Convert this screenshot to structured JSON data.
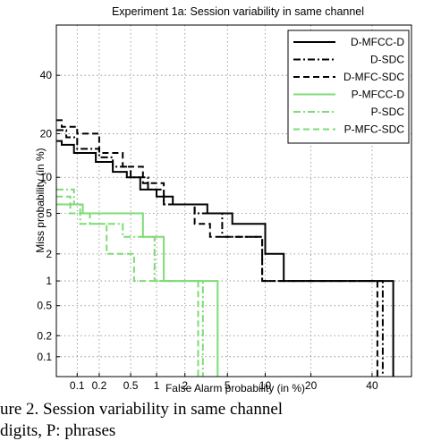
{
  "chart_data": {
    "type": "line",
    "title": "Experiment 1a: Session variability in same channel",
    "xlabel": "False Alarm probability (in %)",
    "ylabel": "Miss probability (in %)",
    "x_scale": "probit",
    "y_scale": "probit",
    "xlim": [
      0.05,
      55
    ],
    "ylim": [
      0.05,
      60
    ],
    "x_ticks": [
      0.1,
      0.2,
      0.5,
      1,
      2,
      5,
      10,
      20,
      40
    ],
    "x_tick_labels": [
      "0.1",
      "0.2",
      "0.5",
      "1",
      "2",
      "5",
      "10",
      "20",
      "40"
    ],
    "y_ticks": [
      0.1,
      0.2,
      0.5,
      1,
      2,
      5,
      10,
      20,
      40
    ],
    "y_tick_labels": [
      "0.1",
      "0.2",
      "0.5",
      "1",
      "2",
      "5",
      "10",
      "20",
      "40"
    ],
    "grid": true,
    "legend_position": "top-right",
    "series": [
      {
        "name": "D-MFCC-D",
        "color": "#000000",
        "dash": "solid",
        "x": [
          0.05,
          0.06,
          0.06,
          0.09,
          0.09,
          0.18,
          0.18,
          0.3,
          0.3,
          0.45,
          0.45,
          0.65,
          0.65,
          1.0,
          1.0,
          1.5,
          1.5,
          3.3,
          3.3,
          5.5,
          5.5,
          10,
          10,
          13.5,
          13.5,
          48,
          48
        ],
        "y": [
          18,
          18,
          17,
          17,
          15,
          15,
          13,
          13,
          11,
          11,
          10,
          10,
          8,
          8,
          7,
          7,
          6,
          6,
          5,
          5,
          4,
          4,
          2,
          2,
          1,
          1,
          0.05
        ]
      },
      {
        "name": "D-SDC",
        "color": "#000000",
        "dash": "dashdot",
        "x": [
          0.05,
          0.07,
          0.07,
          0.1,
          0.1,
          0.2,
          0.2,
          0.3,
          0.3,
          0.5,
          0.5,
          0.8,
          0.8,
          1.2,
          1.2,
          2.5,
          2.5,
          4.5,
          4.5,
          9.5,
          9.5,
          44,
          44
        ],
        "y": [
          21,
          21,
          19,
          19,
          16,
          16,
          14,
          14,
          12,
          12,
          10,
          10,
          8,
          8,
          6,
          6,
          5,
          5,
          3,
          3,
          1,
          1,
          0.05
        ]
      },
      {
        "name": "D-MFC-SDC",
        "color": "#000000",
        "dash": "dashed",
        "x": [
          0.05,
          0.06,
          0.06,
          0.1,
          0.1,
          0.2,
          0.2,
          0.4,
          0.4,
          0.7,
          0.7,
          1.2,
          1.2,
          2.5,
          2.5,
          3.5,
          3.5,
          9.5,
          9.5,
          42,
          42
        ],
        "y": [
          24,
          24,
          22,
          22,
          20,
          20,
          15,
          15,
          12,
          12,
          9,
          9,
          6,
          6,
          4,
          4,
          3,
          3,
          1,
          1,
          0.05
        ]
      },
      {
        "name": "P-MFCC-D",
        "color": "#7cdc74",
        "dash": "solid",
        "x": [
          0.05,
          0.12,
          0.12,
          0.7,
          0.7,
          1.2,
          1.2,
          4.1,
          4.1
        ],
        "y": [
          6,
          6,
          5,
          5,
          3,
          3,
          1,
          1,
          0.05
        ]
      },
      {
        "name": "P-SDC",
        "color": "#7cdc74",
        "dash": "dashdot",
        "x": [
          0.05,
          0.09,
          0.09,
          0.11,
          0.11,
          0.4,
          0.4,
          0.95,
          0.95,
          3.0,
          3.0
        ],
        "y": [
          8,
          8,
          6,
          6,
          4,
          4,
          3,
          3,
          1,
          1,
          0.05
        ]
      },
      {
        "name": "P-MFC-SDC",
        "color": "#7cdc74",
        "dash": "dashed",
        "x": [
          0.05,
          0.08,
          0.08,
          0.15,
          0.15,
          0.25,
          0.25,
          0.55,
          0.55,
          2.7,
          2.7
        ],
        "y": [
          7,
          7,
          5,
          5,
          4,
          4,
          2,
          2,
          1,
          1,
          0.05
        ]
      }
    ]
  },
  "caption": {
    "line1": "ure 2. Session variability in same channel",
    "line2": "digits, P: phrases"
  }
}
